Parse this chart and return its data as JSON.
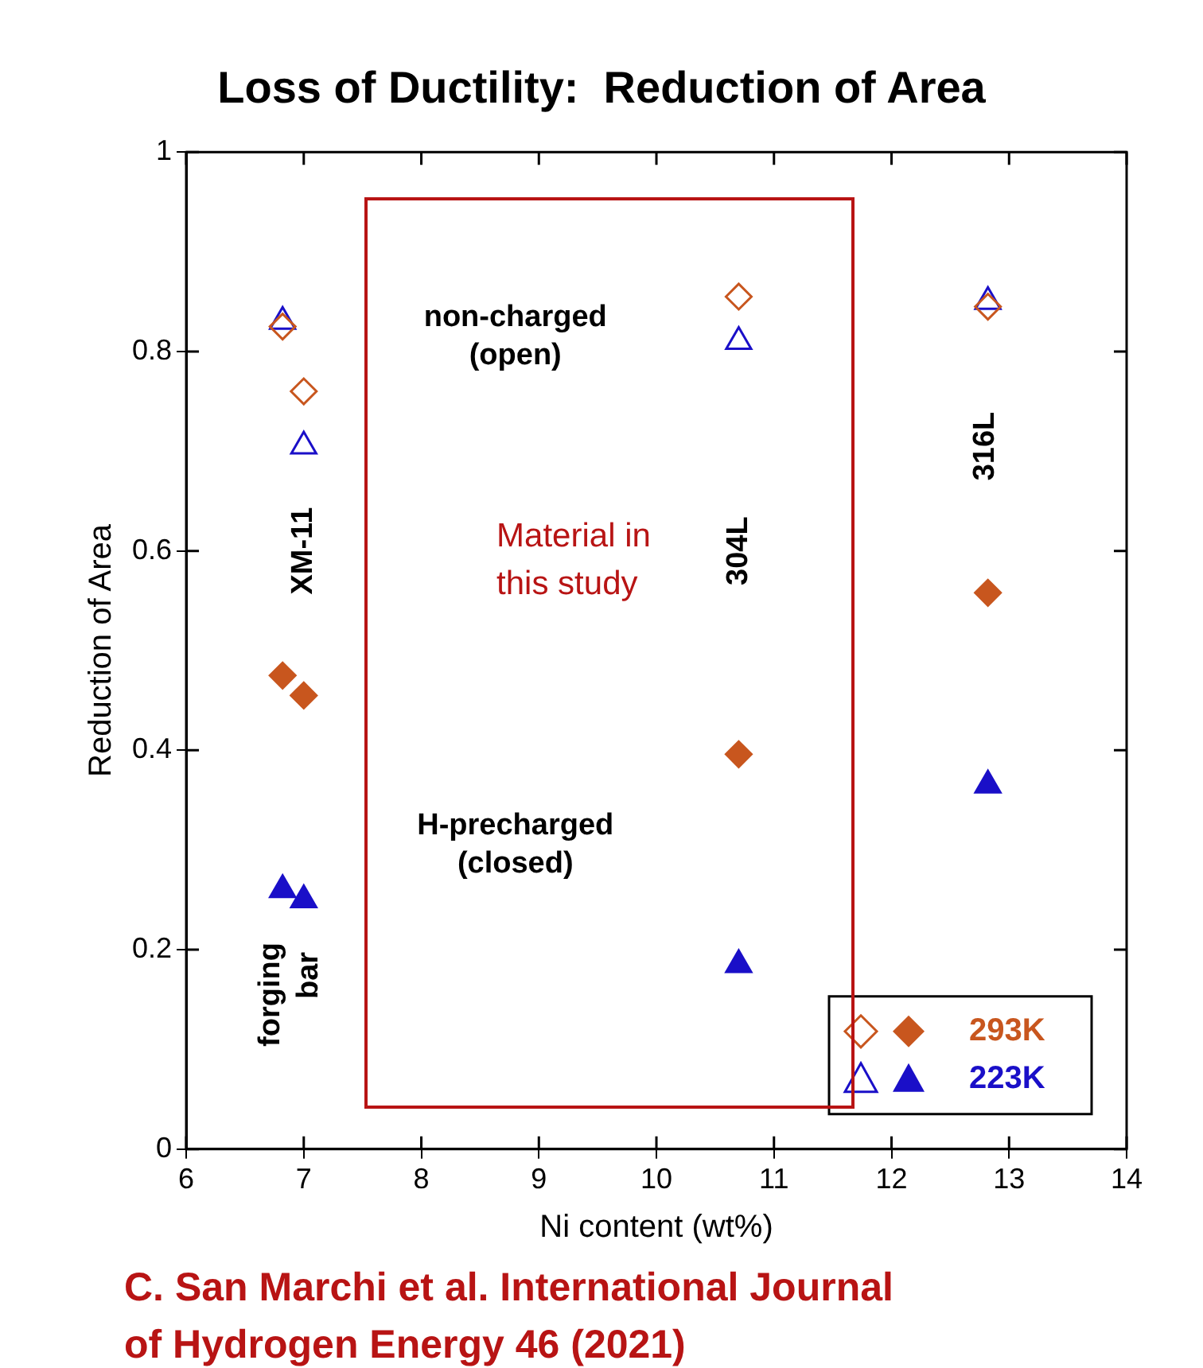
{
  "chart_data": {
    "type": "scatter",
    "title": "Loss of Ductility:  Reduction of Area",
    "xlabel": "Ni content (wt%)",
    "ylabel": "Reduction of Area",
    "series": [
      {
        "color": "#c8561e",
        "marker": "diamond",
        "x": [
          6.82,
          7.0,
          10.7,
          12.82
        ],
        "values": [
          0.825,
          0.76,
          0.855,
          0.845
        ]
      },
      {
        "name": "293K",
        "color": "#c8561e",
        "marker": "diamond",
        "x": [
          6.82,
          7.0,
          10.7,
          12.82
        ],
        "values": [
          0.475,
          0.455,
          0.396,
          0.558
        ]
      },
      {
        "color": "#1a0fc8",
        "marker": "triangle",
        "x": [
          6.82,
          7.0,
          10.7,
          12.82
        ],
        "values": [
          0.83,
          0.705,
          0.81,
          0.85
        ]
      },
      {
        "name": "223K",
        "color": "#1a0fc8",
        "marker": "triangle",
        "x": [
          6.82,
          7.0,
          10.7,
          12.82
        ],
        "values": [
          0.26,
          0.25,
          0.185,
          0.365
        ]
      }
    ],
    "xlim": [
      6,
      14
    ],
    "xticks": [
      6,
      7,
      8,
      9,
      10,
      11,
      12,
      13,
      14
    ],
    "ylim": [
      0,
      1
    ],
    "yticks": [
      0,
      0.2,
      0.4,
      0.6,
      0.8,
      1
    ],
    "grid": false,
    "legend": "bottom right",
    "annotations": [
      "non-charged\n(open)",
      "H-precharged\n(closed)",
      "XM-11",
      "forging\nbar",
      "304L",
      "316L",
      "Material in\nthis study",
      "C. San Marchi et al. International Journal of Hydrogen Energy 46 (2021)"
    ]
  }
}
